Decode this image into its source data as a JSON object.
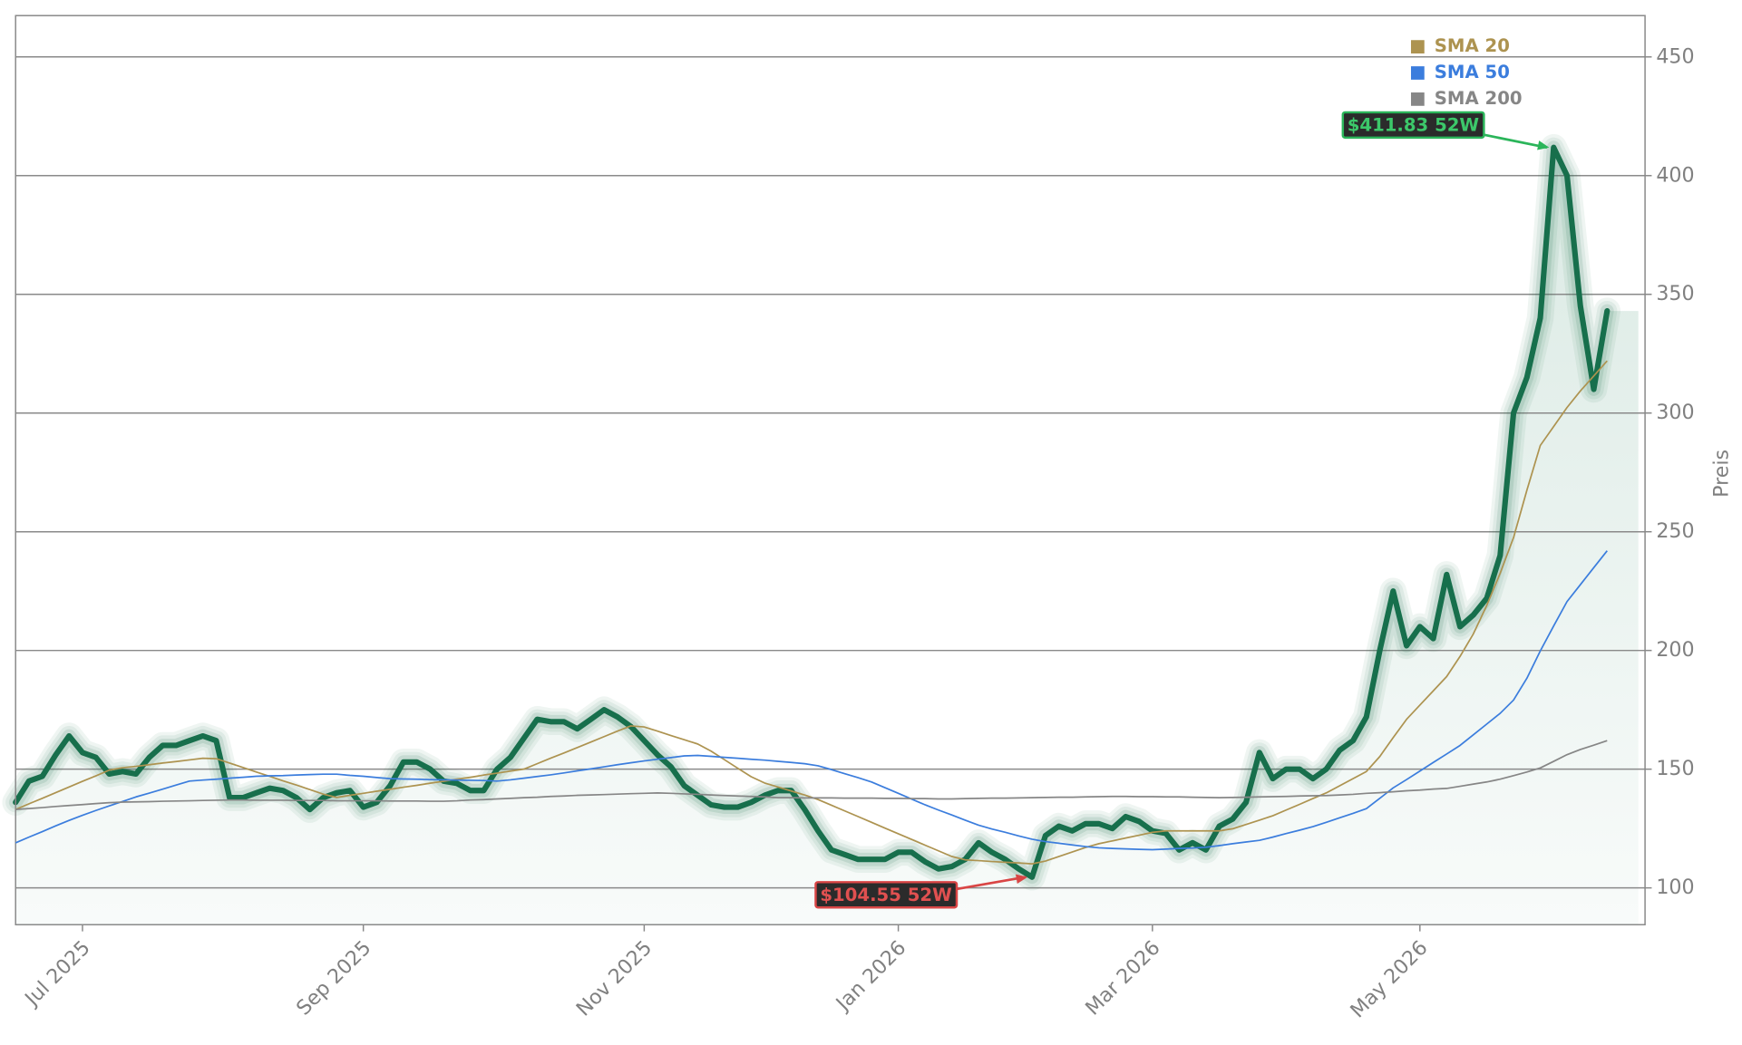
{
  "chart_data": {
    "type": "line",
    "categories": [
      null,
      null,
      null,
      null,
      null,
      "Jul 2025",
      null,
      null,
      null,
      null,
      null,
      null,
      null,
      null,
      null,
      null,
      null,
      null,
      null,
      null,
      null,
      null,
      null,
      null,
      null,
      null,
      "Sep 2025",
      null,
      null,
      null,
      null,
      null,
      null,
      null,
      null,
      null,
      null,
      null,
      null,
      null,
      null,
      null,
      null,
      null,
      null,
      null,
      null,
      "Nov 2025",
      null,
      null,
      null,
      null,
      null,
      null,
      null,
      null,
      null,
      null,
      null,
      null,
      null,
      null,
      null,
      null,
      null,
      null,
      "Jan 2026",
      null,
      null,
      null,
      null,
      null,
      null,
      null,
      null,
      null,
      null,
      null,
      null,
      null,
      null,
      null,
      null,
      null,
      null,
      "Mar 2026",
      null,
      null,
      null,
      null,
      null,
      null,
      null,
      null,
      null,
      null,
      null,
      null,
      null,
      null,
      null,
      null,
      null,
      null,
      null,
      "May 2026",
      null,
      null,
      null,
      null,
      null,
      null,
      null,
      null,
      null,
      null,
      null,
      null,
      null,
      null
    ],
    "series": [
      {
        "color": "#176f4c",
        "values": [
          136,
          145,
          147,
          156,
          164,
          157,
          155,
          148,
          149,
          148,
          155,
          160,
          160,
          162,
          164,
          162,
          138,
          138,
          140,
          142,
          141,
          138,
          133,
          138,
          140,
          141,
          134,
          136,
          143,
          153,
          153,
          150,
          145,
          144,
          141,
          141,
          150,
          155,
          163,
          171,
          170,
          170,
          167,
          171,
          175,
          172,
          168,
          162,
          156,
          151,
          143,
          139,
          135,
          134,
          134,
          136,
          139,
          141,
          141,
          133,
          124,
          116,
          114,
          112,
          112,
          112,
          115,
          115,
          111,
          108,
          109,
          112,
          119,
          115,
          112,
          108,
          104.55,
          122,
          126,
          124,
          127,
          127,
          125,
          130,
          128,
          124,
          123,
          116,
          119,
          116,
          126,
          129,
          136,
          157,
          146,
          150,
          150,
          146,
          150,
          158,
          162,
          172,
          200,
          225,
          202,
          210,
          205,
          232,
          210,
          215,
          222,
          240,
          300,
          315,
          340,
          411.83,
          400,
          345,
          310,
          343
        ]
      },
      {
        "name": "SMA 20",
        "color": "#ad9350",
        "values": [
          133,
          135.4,
          137.7,
          140.1,
          142.5,
          144.9,
          147.2,
          149.6,
          150.6,
          151.2,
          151.9,
          152.6,
          153.2,
          153.9,
          154.6,
          154.4,
          152.6,
          150.7,
          148.8,
          147,
          145.1,
          143.3,
          141.4,
          139.5,
          138.1,
          139,
          139.8,
          140.7,
          141.5,
          142.4,
          143.2,
          144.1,
          144.9,
          145.8,
          146.6,
          147.5,
          148.3,
          149.2,
          150,
          152.3,
          154.6,
          156.8,
          159.1,
          161.4,
          163.7,
          166,
          168.2,
          167.8,
          166,
          164.2,
          162.4,
          160.6,
          157.6,
          154,
          150.4,
          146.8,
          144.2,
          142.5,
          140.8,
          139.1,
          137.2,
          134.8,
          132.4,
          130,
          127.6,
          125.2,
          122.8,
          120.4,
          118,
          115.6,
          113.2,
          111.8,
          111.5,
          111.1,
          110.8,
          110.5,
          110.1,
          111.3,
          113.2,
          115.1,
          117,
          118.6,
          119.8,
          121,
          122.2,
          123.4,
          124,
          124,
          124,
          124,
          124,
          124.9,
          126.7,
          128.5,
          130.4,
          132.8,
          135.2,
          137.6,
          140,
          143,
          146,
          149,
          155.3,
          163.3,
          171,
          177,
          183,
          189,
          197.5,
          207,
          219,
          232.5,
          247.5,
          267.5,
          286.3,
          294.3,
          302.3,
          309.3,
          315.6,
          322
        ]
      },
      {
        "name": "SMA 50",
        "color": "#3b7ddd",
        "values": [
          119,
          121.4,
          123.7,
          126.1,
          128.4,
          130.6,
          132.6,
          134.5,
          136.4,
          138.3,
          139.9,
          141.6,
          143.3,
          145,
          145.4,
          145.8,
          146.2,
          146.6,
          147,
          147.2,
          147.3,
          147.5,
          147.7,
          147.9,
          147.9,
          147.4,
          147,
          146.5,
          146,
          145.9,
          145.8,
          145.6,
          145.5,
          145.4,
          145.3,
          145.2,
          145,
          145.5,
          146.2,
          146.9,
          147.6,
          148.4,
          149.3,
          150.1,
          151,
          151.9,
          152.7,
          153.5,
          154.2,
          154.9,
          155.6,
          155.8,
          155.4,
          155,
          154.6,
          154.2,
          153.8,
          153.3,
          152.8,
          152.3,
          151.4,
          149.8,
          148.1,
          146.4,
          144.6,
          142.2,
          139.8,
          137.4,
          135,
          132.8,
          130.7,
          128.5,
          126.4,
          124.8,
          123.4,
          121.9,
          120.5,
          119.5,
          118.8,
          118.1,
          117.4,
          116.9,
          116.6,
          116.4,
          116.2,
          116.1,
          116.3,
          116.6,
          116.8,
          117.1,
          117.8,
          118.6,
          119.3,
          120,
          121.4,
          122.9,
          124.3,
          125.8,
          127.6,
          129.5,
          131.4,
          133.4,
          137.7,
          142.1,
          145.6,
          149.2,
          152.8,
          156.4,
          160,
          164.5,
          169,
          173.5,
          179.1,
          188.3,
          199.8,
          210.3,
          220.6,
          227.7,
          234.9,
          242
        ]
      },
      {
        "name": "SMA 200",
        "color": "#868686",
        "values": [
          133,
          133.4,
          133.8,
          134.3,
          134.7,
          135.1,
          135.5,
          135.9,
          136.1,
          136.2,
          136.3,
          136.5,
          136.6,
          136.7,
          136.8,
          136.9,
          137,
          137,
          136.9,
          136.9,
          136.9,
          136.8,
          136.8,
          136.8,
          136.7,
          136.7,
          136.7,
          136.7,
          136.6,
          136.6,
          136.6,
          136.5,
          136.5,
          136.7,
          137,
          137.2,
          137.5,
          137.7,
          138,
          138.2,
          138.5,
          138.7,
          139,
          139.1,
          139.3,
          139.5,
          139.7,
          139.8,
          140,
          139.8,
          139.6,
          139.4,
          139.1,
          138.9,
          138.7,
          138.5,
          138.3,
          138,
          138,
          137.9,
          137.9,
          137.9,
          137.8,
          137.8,
          137.8,
          137.7,
          137.7,
          137.6,
          137.6,
          137.5,
          137.5,
          137.6,
          137.7,
          137.8,
          137.8,
          137.9,
          138,
          138.1,
          138.2,
          138.2,
          138.3,
          138.4,
          138.5,
          138.5,
          138.4,
          138.4,
          138.3,
          138.3,
          138.2,
          138.1,
          138,
          138.1,
          138.2,
          138.3,
          138.4,
          138.5,
          138.7,
          138.8,
          138.9,
          139.1,
          139.4,
          139.8,
          140.1,
          140.5,
          140.9,
          141.2,
          141.6,
          141.9,
          142.8,
          143.7,
          144.6,
          145.8,
          147.3,
          148.8,
          150.5,
          153.3,
          156.1,
          158.3,
          160.1,
          162
        ]
      }
    ],
    "ylim": [
      84.5,
      467.4
    ],
    "yticks": [
      100,
      150,
      200,
      250,
      300,
      350,
      400,
      450
    ],
    "grid": true,
    "ylabel": "Preis",
    "legend": "upper right",
    "annotations": {
      "high": "$411.83 52W",
      "low": "$104.55 52W"
    }
  }
}
